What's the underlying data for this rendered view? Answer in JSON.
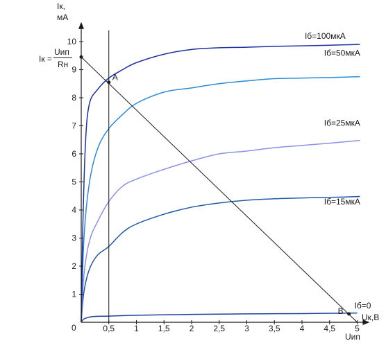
{
  "chart_data": {
    "type": "line",
    "xlabel": "Uк,В",
    "ylabel_line1": "Iк,",
    "ylabel_line2": "мА",
    "xlim": [
      0,
      5.1
    ],
    "ylim": [
      0,
      10.4
    ],
    "x_ticks": [
      0.5,
      1,
      1.5,
      2,
      2.5,
      3,
      3.5,
      4,
      4.5,
      5
    ],
    "x_tick_labels": [
      "0,5",
      "1",
      "1,5",
      "2",
      "2,5",
      "3",
      "3,5",
      "4",
      "4,5",
      "5"
    ],
    "y_ticks": [
      1,
      2,
      3,
      4,
      5,
      6,
      7,
      8,
      9,
      10
    ],
    "y_tick_labels": [
      "1",
      "2",
      "3",
      "4",
      "5",
      "6",
      "7",
      "8",
      "9",
      "10"
    ],
    "origin_label": "0",
    "x_axis_extra_label": "Uип",
    "y_intercept_label": {
      "prefix": "Iк =",
      "numerator": "Uип",
      "denominator": "Rн"
    },
    "series": [
      {
        "name": "Iб=0",
        "color": "#1f3f9a",
        "points": [
          [
            0,
            0
          ],
          [
            0.05,
            0.12
          ],
          [
            0.2,
            0.2
          ],
          [
            0.5,
            0.22
          ],
          [
            1,
            0.25
          ],
          [
            2,
            0.28
          ],
          [
            3,
            0.3
          ],
          [
            4,
            0.31
          ],
          [
            5,
            0.33
          ]
        ]
      },
      {
        "name": "Iб=15мкА",
        "color": "#1f5aa8",
        "points": [
          [
            0,
            0
          ],
          [
            0.05,
            1.1
          ],
          [
            0.15,
            1.9
          ],
          [
            0.3,
            2.4
          ],
          [
            0.5,
            2.7
          ],
          [
            0.75,
            3.2
          ],
          [
            1,
            3.5
          ],
          [
            1.5,
            3.85
          ],
          [
            2,
            4.1
          ],
          [
            2.5,
            4.25
          ],
          [
            3,
            4.35
          ],
          [
            3.5,
            4.4
          ],
          [
            4,
            4.43
          ],
          [
            4.5,
            4.45
          ],
          [
            5.05,
            4.48
          ]
        ]
      },
      {
        "name": "Iб=25мкА",
        "color": "#8a8fe8",
        "points": [
          [
            0,
            0
          ],
          [
            0.05,
            1.7
          ],
          [
            0.15,
            2.9
          ],
          [
            0.3,
            3.6
          ],
          [
            0.5,
            4.3
          ],
          [
            0.75,
            4.85
          ],
          [
            1,
            5.1
          ],
          [
            1.5,
            5.45
          ],
          [
            2,
            5.75
          ],
          [
            2.5,
            6.0
          ],
          [
            3,
            6.1
          ],
          [
            3.5,
            6.22
          ],
          [
            4,
            6.3
          ],
          [
            4.5,
            6.38
          ],
          [
            5.05,
            6.48
          ]
        ]
      },
      {
        "name": "Iб=50мкА",
        "color": "#2a8ad8",
        "points": [
          [
            0,
            0
          ],
          [
            0.05,
            3.0
          ],
          [
            0.15,
            5.0
          ],
          [
            0.3,
            6.2
          ],
          [
            0.5,
            6.9
          ],
          [
            0.75,
            7.4
          ],
          [
            1,
            7.8
          ],
          [
            1.5,
            8.2
          ],
          [
            2,
            8.35
          ],
          [
            2.5,
            8.5
          ],
          [
            3,
            8.6
          ],
          [
            3.5,
            8.68
          ],
          [
            4,
            8.7
          ],
          [
            4.5,
            8.72
          ],
          [
            5.05,
            8.75
          ]
        ]
      },
      {
        "name": "Iб=100мкА",
        "color": "#1c2fa0",
        "points": [
          [
            0,
            0
          ],
          [
            0.03,
            3.5
          ],
          [
            0.08,
            6.5
          ],
          [
            0.15,
            7.8
          ],
          [
            0.3,
            8.3
          ],
          [
            0.5,
            8.7
          ],
          [
            0.75,
            9.0
          ],
          [
            1,
            9.25
          ],
          [
            1.5,
            9.55
          ],
          [
            2,
            9.72
          ],
          [
            2.5,
            9.78
          ],
          [
            3,
            9.8
          ],
          [
            3.5,
            9.83
          ],
          [
            4,
            9.85
          ],
          [
            4.5,
            9.87
          ],
          [
            5.05,
            9.9
          ]
        ]
      }
    ],
    "series_label_positions": [
      {
        "name": "Iб=100мкА",
        "x": 4.05,
        "y": 10.1
      },
      {
        "name": "Iб=50мкА",
        "x": 4.4,
        "y": 9.5
      },
      {
        "name": "Iб=25мкА",
        "x": 4.4,
        "y": 7.0
      },
      {
        "name": "Iб=15мкА",
        "x": 4.4,
        "y": 4.2
      },
      {
        "name": "Iб=0",
        "x": 4.95,
        "y": 0.5
      }
    ],
    "load_line": {
      "x0": 0,
      "y0": 9.45,
      "x1": 5,
      "y1": 0,
      "color": "#1a1a1a"
    },
    "vertical_line_x": 0.5,
    "points": [
      {
        "label": "A",
        "x": 0.5,
        "y": 8.55
      },
      {
        "label": "B",
        "x": 4.85,
        "y": 0.3
      }
    ]
  }
}
